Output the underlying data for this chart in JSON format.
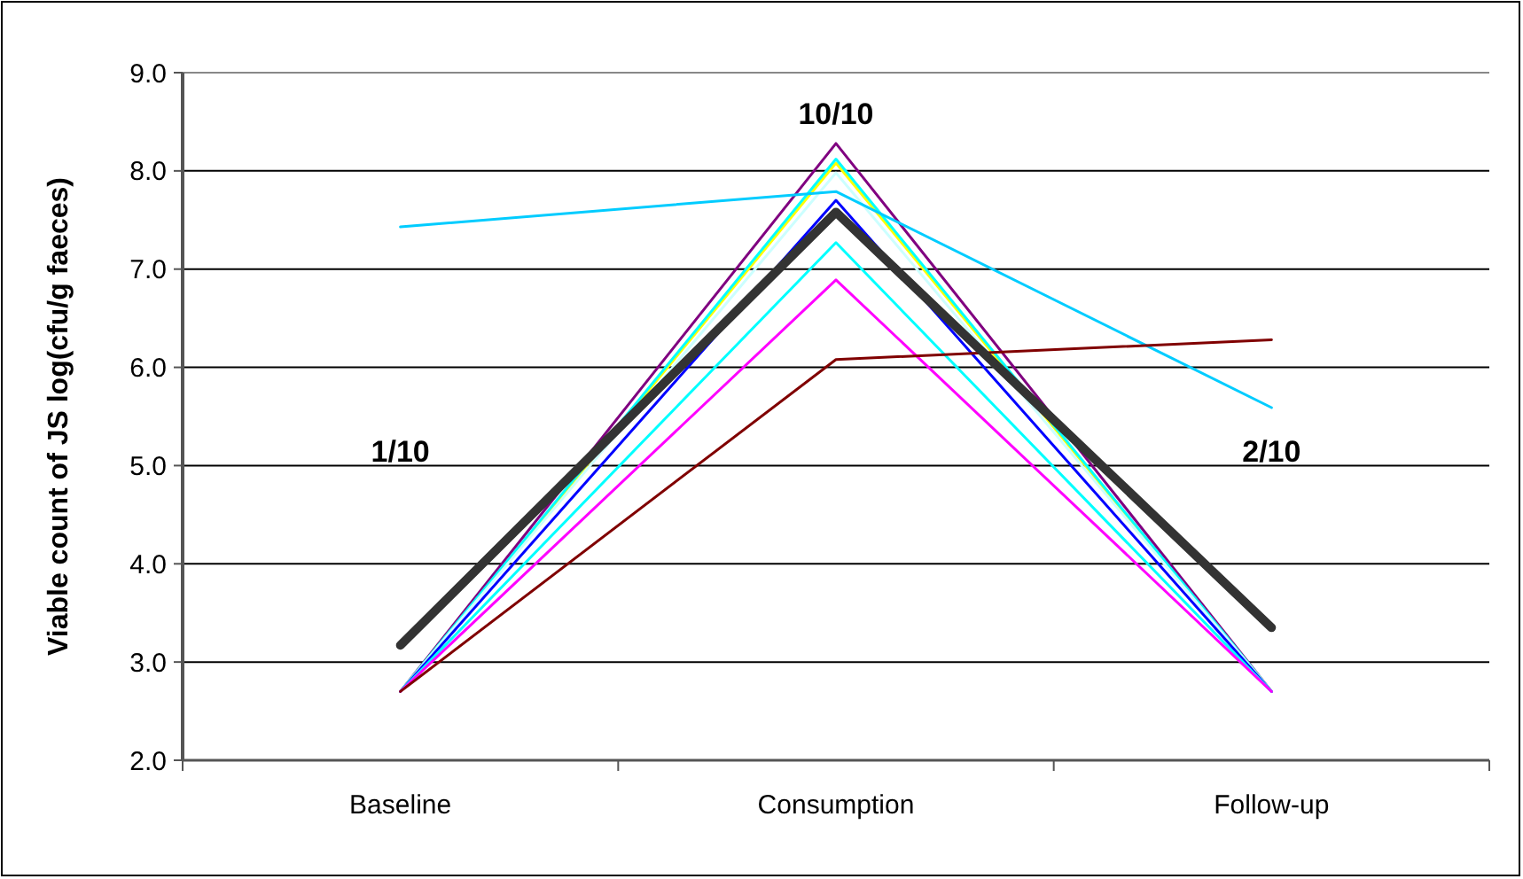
{
  "chart_data": {
    "type": "line",
    "ylabel": "Viable count of JS log(cfu/g faeces)",
    "categories": [
      "Baseline",
      "Consumption",
      "Follow-up"
    ],
    "series": [
      {
        "color": "#800080",
        "values": [
          2.7,
          8.28,
          2.7
        ]
      },
      {
        "color": "#ffff00",
        "values": [
          2.7,
          8.08,
          2.7
        ]
      },
      {
        "color": "#00ffff",
        "values": [
          2.7,
          8.12,
          2.7
        ]
      },
      {
        "color": "#ccffff",
        "values": [
          2.7,
          7.98,
          2.7
        ]
      },
      {
        "color": "#00ccff",
        "values": [
          7.43,
          7.79,
          5.59
        ]
      },
      {
        "color": "#0000ff",
        "values": [
          2.7,
          7.7,
          2.7
        ]
      },
      {
        "color": "#00ffff",
        "values": [
          2.7,
          7.27,
          2.7
        ]
      },
      {
        "color": "#ff00ff",
        "values": [
          2.7,
          6.89,
          2.7
        ]
      },
      {
        "color": "#800000",
        "values": [
          2.7,
          6.08,
          6.28
        ]
      },
      {
        "color": "#333333",
        "values": [
          3.17,
          7.58,
          3.35
        ]
      }
    ],
    "ylim": [
      2,
      9
    ],
    "yticks": [
      {
        "value": 2,
        "label": "2.0"
      },
      {
        "value": 3,
        "label": "3.0"
      },
      {
        "value": 4,
        "label": "4.0"
      },
      {
        "value": 5,
        "label": "5.0"
      },
      {
        "value": 6,
        "label": "6.0"
      },
      {
        "value": 7,
        "label": "7.0"
      },
      {
        "value": 8,
        "label": "8.0"
      },
      {
        "value": 9,
        "label": "9.0"
      }
    ],
    "grid": "y",
    "marker": "none",
    "line_style": "solid",
    "annotations": [
      "1/10",
      "10/10",
      "2/10"
    ]
  }
}
